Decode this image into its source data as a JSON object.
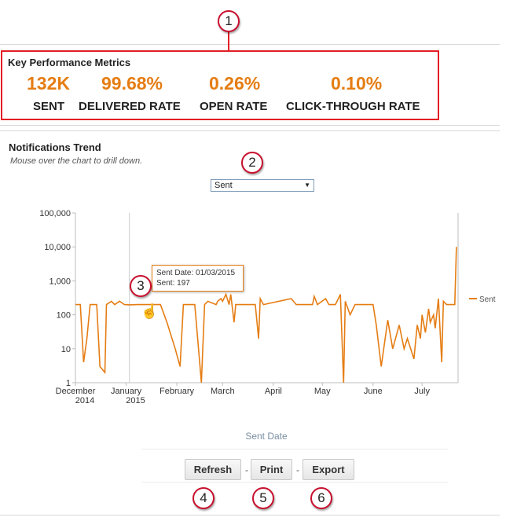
{
  "kpi": {
    "title": "Key Performance Metrics",
    "metrics": [
      {
        "value": "132K",
        "label": "SENT"
      },
      {
        "value": "99.68%",
        "label": "DELIVERED RATE"
      },
      {
        "value": "0.26%",
        "label": "OPEN RATE"
      },
      {
        "value": "0.10%",
        "label": "CLICK-THROUGH RATE"
      }
    ],
    "accent_color": "#e57d13"
  },
  "callouts": [
    "1",
    "2",
    "3",
    "4",
    "5",
    "6"
  ],
  "trend": {
    "title": "Notifications Trend",
    "subtitle": "Mouse over the chart to drill down.",
    "metric_select": {
      "selected": "Sent"
    }
  },
  "tooltip": {
    "line1": "Sent Date: 01/03/2015",
    "line2": "Sent: 197"
  },
  "chart_data": {
    "type": "line",
    "xlabel": "Sent Date",
    "ylabel": "",
    "y_scale": "log",
    "ylim": [
      1,
      100000
    ],
    "y_ticks": [
      "1",
      "10",
      "100",
      "1,000",
      "10,000",
      "100,000"
    ],
    "x_ticks": [
      {
        "date": "2014-12-01",
        "label": "December",
        "sublabel": "2014"
      },
      {
        "date": "2015-01-01",
        "label": "January",
        "sublabel": "2015"
      },
      {
        "date": "2015-02-01",
        "label": "February",
        "sublabel": ""
      },
      {
        "date": "2015-03-01",
        "label": "March",
        "sublabel": ""
      },
      {
        "date": "2015-04-01",
        "label": "April",
        "sublabel": ""
      },
      {
        "date": "2015-05-01",
        "label": "May",
        "sublabel": ""
      },
      {
        "date": "2015-06-01",
        "label": "June",
        "sublabel": ""
      },
      {
        "date": "2015-07-01",
        "label": "July",
        "sublabel": ""
      }
    ],
    "xlim": [
      "2014-12-01",
      "2015-07-23"
    ],
    "legend": "right",
    "series": [
      {
        "name": "Sent",
        "color": "#e57d13",
        "points": [
          [
            "2014-12-01",
            200
          ],
          [
            "2014-12-04",
            200
          ],
          [
            "2014-12-06",
            4
          ],
          [
            "2014-12-08",
            20
          ],
          [
            "2014-12-10",
            200
          ],
          [
            "2014-12-14",
            200
          ],
          [
            "2014-12-16",
            3
          ],
          [
            "2014-12-19",
            2
          ],
          [
            "2014-12-20",
            200
          ],
          [
            "2014-12-23",
            250
          ],
          [
            "2014-12-25",
            200
          ],
          [
            "2014-12-28",
            250
          ],
          [
            "2014-12-31",
            200
          ],
          [
            "2015-01-03",
            197
          ],
          [
            "2015-01-08",
            200
          ],
          [
            "2015-01-13",
            200
          ],
          [
            "2015-01-18",
            200
          ],
          [
            "2015-01-22",
            200
          ],
          [
            "2015-01-26",
            60
          ],
          [
            "2015-01-31",
            10
          ],
          [
            "2015-02-03",
            3
          ],
          [
            "2015-02-05",
            200
          ],
          [
            "2015-02-09",
            200
          ],
          [
            "2015-02-12",
            200
          ],
          [
            "2015-02-16",
            1
          ],
          [
            "2015-02-18",
            200
          ],
          [
            "2015-02-20",
            250
          ],
          [
            "2015-02-25",
            200
          ],
          [
            "2015-02-26",
            250
          ],
          [
            "2015-02-28",
            300
          ],
          [
            "2015-03-01",
            250
          ],
          [
            "2015-03-03",
            400
          ],
          [
            "2015-03-05",
            200
          ],
          [
            "2015-03-06",
            400
          ],
          [
            "2015-03-08",
            60
          ],
          [
            "2015-03-09",
            200
          ],
          [
            "2015-03-13",
            200
          ],
          [
            "2015-03-18",
            200
          ],
          [
            "2015-03-21",
            200
          ],
          [
            "2015-03-23",
            20
          ],
          [
            "2015-03-24",
            300
          ],
          [
            "2015-03-26",
            200
          ],
          [
            "2015-04-12",
            300
          ],
          [
            "2015-04-15",
            200
          ],
          [
            "2015-04-20",
            200
          ],
          [
            "2015-04-25",
            200
          ],
          [
            "2015-04-26",
            350
          ],
          [
            "2015-04-28",
            200
          ],
          [
            "2015-05-03",
            300
          ],
          [
            "2015-05-05",
            200
          ],
          [
            "2015-05-09",
            200
          ],
          [
            "2015-05-12",
            400
          ],
          [
            "2015-05-14",
            1
          ],
          [
            "2015-05-15",
            250
          ],
          [
            "2015-05-18",
            100
          ],
          [
            "2015-05-21",
            200
          ],
          [
            "2015-05-24",
            200
          ],
          [
            "2015-05-27",
            200
          ],
          [
            "2015-06-01",
            200
          ],
          [
            "2015-06-03",
            50
          ],
          [
            "2015-06-06",
            3
          ],
          [
            "2015-06-10",
            70
          ],
          [
            "2015-06-13",
            10
          ],
          [
            "2015-06-17",
            50
          ],
          [
            "2015-06-20",
            10
          ],
          [
            "2015-06-22",
            20
          ],
          [
            "2015-06-26",
            5
          ],
          [
            "2015-06-28",
            50
          ],
          [
            "2015-06-30",
            20
          ],
          [
            "2015-07-01",
            100
          ],
          [
            "2015-07-03",
            30
          ],
          [
            "2015-07-05",
            150
          ],
          [
            "2015-07-06",
            60
          ],
          [
            "2015-07-08",
            100
          ],
          [
            "2015-07-09",
            40
          ],
          [
            "2015-07-11",
            300
          ],
          [
            "2015-07-13",
            4
          ],
          [
            "2015-07-14",
            250
          ],
          [
            "2015-07-16",
            200
          ],
          [
            "2015-07-21",
            200
          ],
          [
            "2015-07-22",
            10000
          ]
        ]
      }
    ]
  },
  "buttons": {
    "refresh": "Refresh",
    "print": "Print",
    "export": "Export",
    "separator": "-"
  }
}
